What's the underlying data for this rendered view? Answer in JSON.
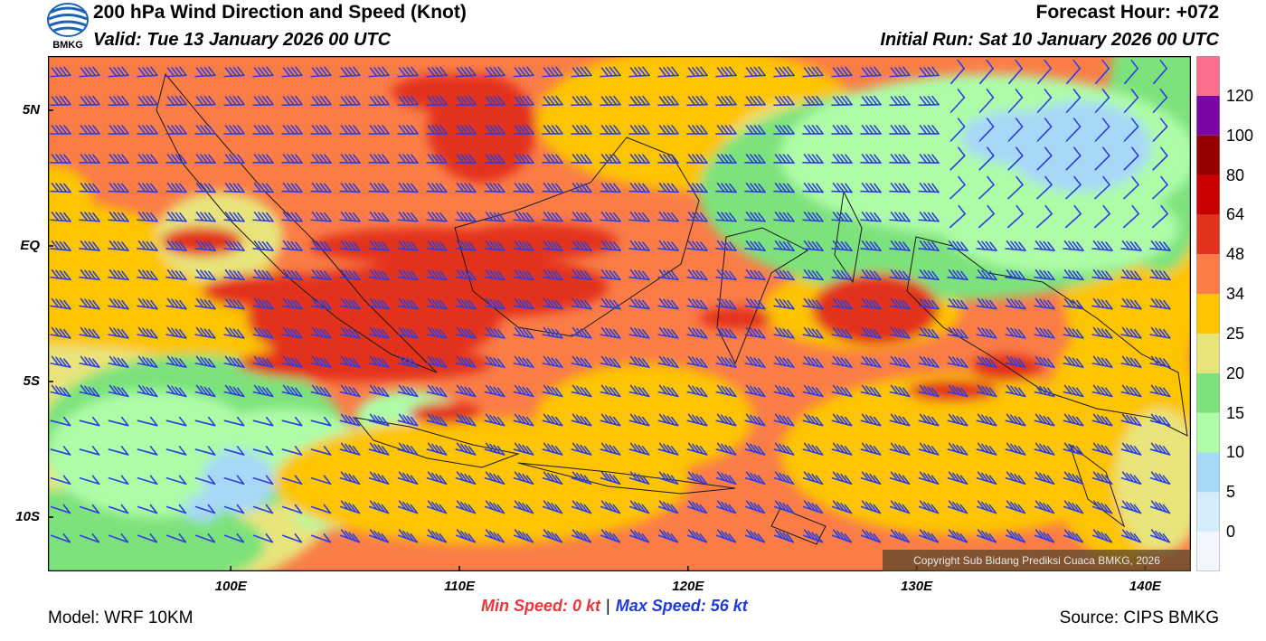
{
  "header": {
    "logo_text": "BMKG",
    "title": "200 hPa Wind Direction and Speed (Knot)",
    "valid": "Valid: Tue 13 January 2026 00 UTC",
    "forecast_hour": "Forecast Hour: +072",
    "initial_run": "Initial Run: Sat 10 January 2026 00 UTC"
  },
  "map": {
    "lon_range": [
      92,
      142
    ],
    "lat_range": [
      -12,
      7
    ],
    "lat_ticks": [
      {
        "value": 5,
        "label": "5N"
      },
      {
        "value": 0,
        "label": "EQ"
      },
      {
        "value": -5,
        "label": "5S"
      },
      {
        "value": -10,
        "label": "10S"
      }
    ],
    "lon_ticks": [
      {
        "value": 100,
        "label": "100E"
      },
      {
        "value": 110,
        "label": "110E"
      },
      {
        "value": 120,
        "label": "120E"
      },
      {
        "value": 130,
        "label": "130E"
      },
      {
        "value": 140,
        "label": "140E"
      }
    ],
    "barb_color": "#2d3fe0",
    "copyright": "Copyright Sub Bidang Prediksi Cuaca BMKG, 2026"
  },
  "colorbar": {
    "levels": [
      {
        "label": "0",
        "color": "#f2f7fd"
      },
      {
        "label": "5",
        "color": "#d6ecfb"
      },
      {
        "label": "10",
        "color": "#a8d8f7"
      },
      {
        "label": "15",
        "color": "#aefca8"
      },
      {
        "label": "20",
        "color": "#7de27c"
      },
      {
        "label": "25",
        "color": "#e8e47c"
      },
      {
        "label": "34",
        "color": "#fdc400"
      },
      {
        "label": "48",
        "color": "#fa7d48"
      },
      {
        "label": "64",
        "color": "#e3321c"
      },
      {
        "label": "80",
        "color": "#c80000"
      },
      {
        "label": "100",
        "color": "#960000"
      },
      {
        "label": "120",
        "color": "#7a06a6"
      },
      {
        "label": "",
        "color": "#fa6e8c"
      }
    ]
  },
  "footer": {
    "model": "Model: WRF 10KM",
    "source": "Source: CIPS BMKG",
    "min_speed": "Min Speed:   0 kt",
    "separator": "|",
    "max_speed": "Max Speed:  56 kt"
  }
}
